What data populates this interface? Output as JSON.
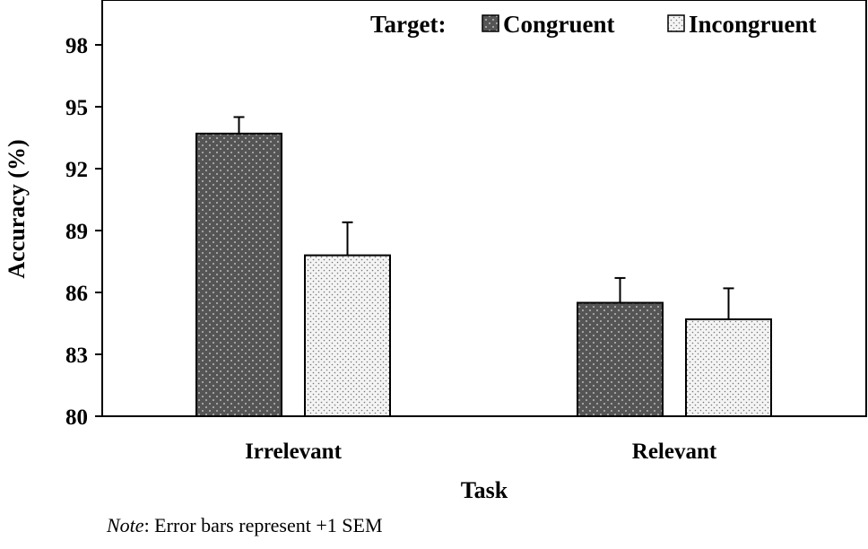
{
  "chart_data": {
    "type": "bar",
    "xlabel": "Task",
    "ylabel": "Accuracy (%)",
    "categories": [
      "Irrelevant",
      "Relevant"
    ],
    "ylim": [
      80,
      101
    ],
    "yticks": [
      80,
      83,
      86,
      89,
      92,
      95,
      98
    ],
    "legend_title": "Target:",
    "legend_position": "top-right",
    "grid": false,
    "series": [
      {
        "name": "Congruent",
        "values": [
          93.7,
          85.5
        ],
        "error": [
          0.8,
          1.2
        ],
        "color": "#555555",
        "pattern": "dark-dotted"
      },
      {
        "name": "Incongruent",
        "values": [
          87.8,
          84.7
        ],
        "error": [
          1.6,
          1.5
        ],
        "color": "#f2f2f2",
        "pattern": "light-dotted"
      }
    ]
  },
  "note": {
    "italic": "Note",
    "text": ": Error bars represent +1 SEM"
  }
}
